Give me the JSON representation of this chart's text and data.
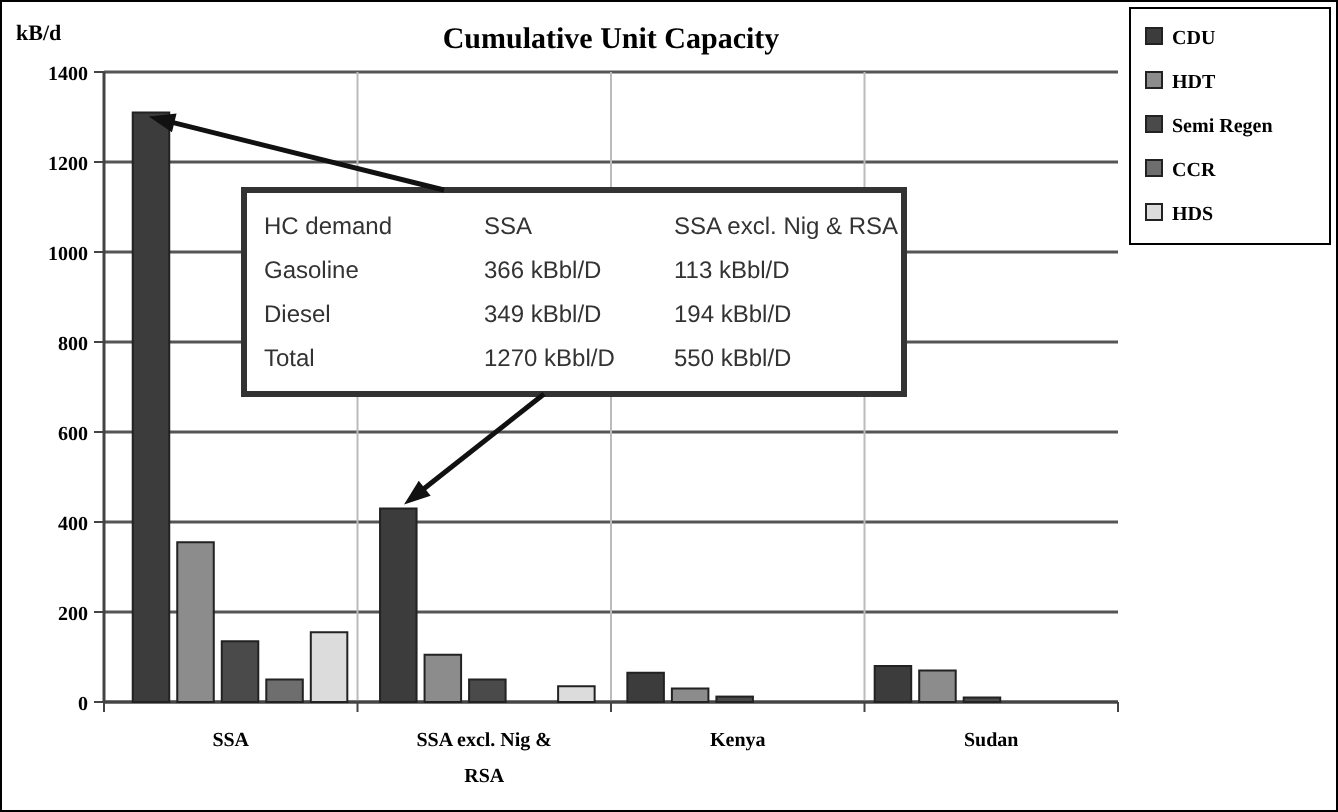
{
  "chart_data": {
    "type": "bar",
    "title": "Cumulative Unit Capacity",
    "ylabel": "kB/d",
    "categories": [
      "SSA",
      "SSA excl. Nig & RSA",
      "Kenya",
      "Sudan"
    ],
    "series": [
      {
        "name": "CDU",
        "color": "#3c3c3c",
        "values": [
          1310,
          430,
          65,
          80
        ]
      },
      {
        "name": "HDT",
        "color": "#8c8c8c",
        "values": [
          355,
          105,
          30,
          70
        ]
      },
      {
        "name": "Semi Regen",
        "color": "#4a4a4a",
        "values": [
          135,
          50,
          12,
          10
        ]
      },
      {
        "name": "CCR",
        "color": "#6e6e6e",
        "values": [
          50,
          null,
          null,
          null
        ]
      },
      {
        "name": "HDS",
        "color": "#dcdcdc",
        "values": [
          155,
          35,
          null,
          null
        ]
      }
    ],
    "ylim": [
      0,
      1400
    ],
    "yticks": [
      0,
      200,
      400,
      600,
      800,
      1000,
      1200,
      1400
    ],
    "grid": true,
    "legend": "top right",
    "annotations": [
      "HC demand",
      "SSA",
      "SSA excl. Nig & RSA",
      "Gasoline",
      "366 kBbl/D",
      "113 kBbl/D",
      "Diesel",
      "349 kBbl/D",
      "194 kBbl/D",
      "Total",
      "1270 kBbl/D",
      "550 kBbl/D"
    ]
  }
}
